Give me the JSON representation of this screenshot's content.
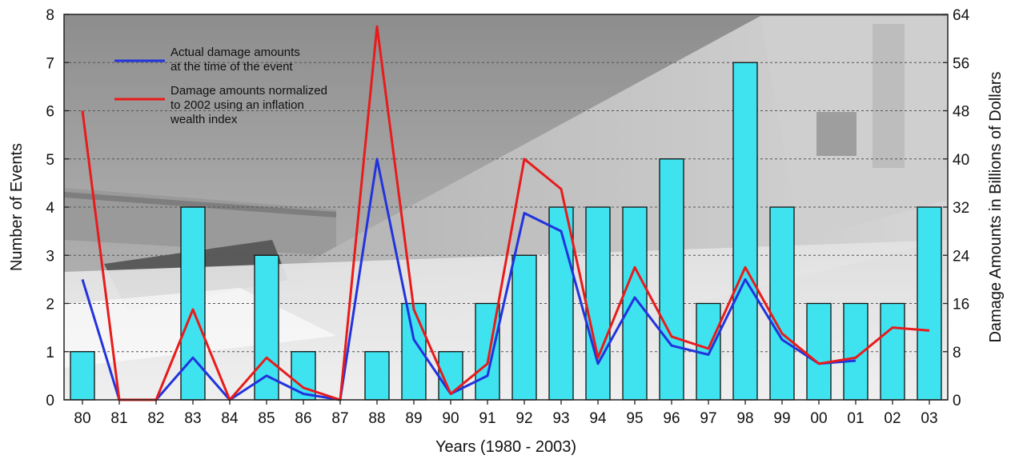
{
  "chart_data": {
    "type": "bar",
    "title": "",
    "xlabel": "Years (1980 - 2003)",
    "ylabel": "Number of Events",
    "y2label": "Damage Amounts in Billions of Dollars",
    "ylim": [
      0,
      8
    ],
    "y2lim": [
      0,
      64
    ],
    "yticks": [
      "0",
      "1",
      "2",
      "3",
      "4",
      "5",
      "6",
      "7",
      "8"
    ],
    "y2ticks": [
      "0",
      "8",
      "16",
      "24",
      "32",
      "40",
      "48",
      "56",
      "64"
    ],
    "categories": [
      "80",
      "81",
      "82",
      "83",
      "84",
      "85",
      "86",
      "87",
      "88",
      "89",
      "90",
      "91",
      "92",
      "93",
      "94",
      "95",
      "96",
      "97",
      "98",
      "99",
      "00",
      "01",
      "02",
      "03"
    ],
    "bars": {
      "name": "Number of Events",
      "color": "#3fe3f0",
      "values": [
        1,
        0,
        0,
        4,
        0,
        3,
        1,
        0,
        1,
        2,
        1,
        2,
        3,
        4,
        4,
        4,
        5,
        2,
        7,
        4,
        2,
        2,
        2,
        4
      ]
    },
    "series": [
      {
        "name": "Actual damage amounts at the time of the event",
        "color": "#2233dd",
        "axis": "right",
        "values": [
          20,
          0,
          0,
          7,
          0,
          4,
          1,
          0,
          40,
          10,
          1,
          4,
          31,
          28,
          6,
          17,
          9,
          7.5,
          20,
          10,
          6,
          6.5,
          null,
          null
        ]
      },
      {
        "name": "Damage amounts normalized to 2002 using an inflation wealth index",
        "color": "#e81b1b",
        "axis": "right",
        "values": [
          48,
          0,
          0,
          15,
          0,
          7,
          2,
          0,
          62,
          15,
          1,
          6,
          40,
          35,
          7,
          22,
          10.5,
          8.5,
          22,
          11,
          6,
          7,
          12,
          11.5
        ]
      }
    ],
    "legend": {
      "position": "top-left",
      "entries": [
        {
          "lines": [
            "Actual damage amounts",
            "at the time of the event"
          ],
          "color": "#2233dd"
        },
        {
          "lines": [
            "Damage amounts normalized",
            "to 2002 using an inflation",
            "wealth index"
          ],
          "color": "#e81b1b"
        }
      ]
    },
    "grid": "horizontal-dashed",
    "background": "photo"
  }
}
